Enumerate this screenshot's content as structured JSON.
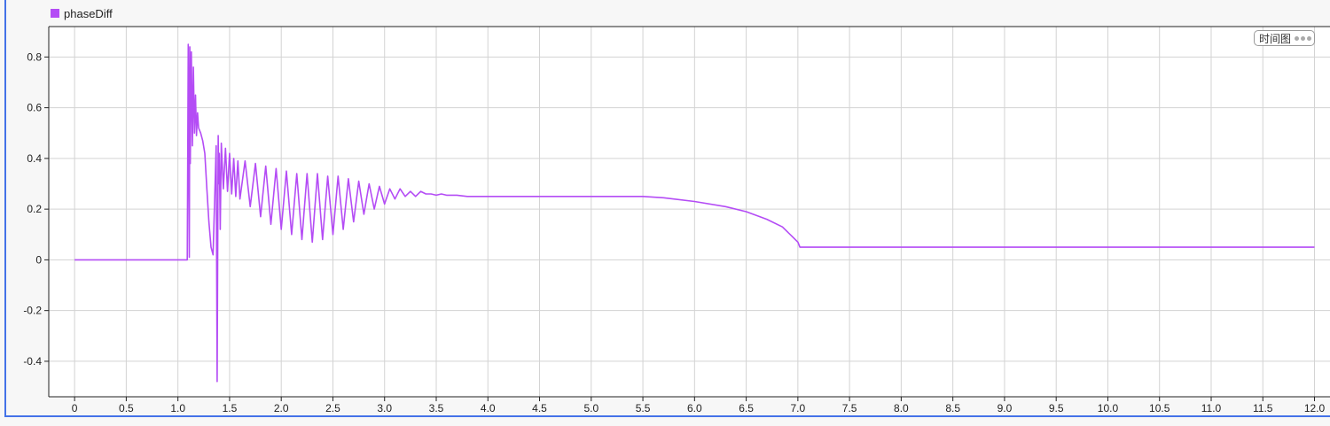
{
  "colors": {
    "series": "#b44cf5",
    "grid": "#d3d3d3",
    "axis": "#222222",
    "frame": "#4472e8"
  },
  "ui": {
    "mode_label": "时间图",
    "more_icon": "more-dots-icon"
  },
  "chart_data": {
    "type": "line",
    "xlim": [
      -0.25,
      12.15
    ],
    "ylim": [
      -0.54,
      0.92
    ],
    "x_ticks": [
      0,
      0.5,
      1.0,
      1.5,
      2.0,
      2.5,
      3.0,
      3.5,
      4.0,
      4.5,
      5.0,
      5.5,
      6.0,
      6.5,
      7.0,
      7.5,
      8.0,
      8.5,
      9.0,
      9.5,
      10.0,
      10.5,
      11.0,
      11.5,
      12.0
    ],
    "x_tick_labels": [
      "0",
      "0.5",
      "1.0",
      "1.5",
      "2.0",
      "2.5",
      "3.0",
      "3.5",
      "4.0",
      "4.5",
      "5.0",
      "5.5",
      "6.0",
      "6.5",
      "7.0",
      "7.5",
      "8.0",
      "8.5",
      "9.0",
      "9.5",
      "10.0",
      "10.5",
      "11.0",
      "11.5",
      "12.0"
    ],
    "y_ticks": [
      0.8,
      0.6,
      0.4,
      0.2,
      0,
      -0.2,
      -0.4
    ],
    "y_tick_labels": [
      "0.8",
      "0.6",
      "0.4",
      "0.2",
      "0",
      "-0.2",
      "-0.4"
    ],
    "grid": true,
    "legend_position": "top-left",
    "series": [
      {
        "name": "phaseDiff",
        "x": [
          0,
          0.5,
          1.09,
          1.1,
          1.11,
          1.115,
          1.12,
          1.13,
          1.14,
          1.15,
          1.16,
          1.17,
          1.18,
          1.19,
          1.2,
          1.22,
          1.24,
          1.26,
          1.28,
          1.3,
          1.32,
          1.34,
          1.36,
          1.37,
          1.38,
          1.39,
          1.395,
          1.4,
          1.41,
          1.42,
          1.44,
          1.46,
          1.48,
          1.5,
          1.52,
          1.54,
          1.56,
          1.58,
          1.6,
          1.65,
          1.7,
          1.75,
          1.8,
          1.85,
          1.9,
          1.95,
          2.0,
          2.05,
          2.1,
          2.15,
          2.2,
          2.25,
          2.3,
          2.35,
          2.4,
          2.45,
          2.5,
          2.55,
          2.6,
          2.65,
          2.7,
          2.75,
          2.8,
          2.85,
          2.9,
          2.95,
          3.0,
          3.05,
          3.1,
          3.15,
          3.2,
          3.25,
          3.3,
          3.35,
          3.4,
          3.45,
          3.5,
          3.55,
          3.6,
          3.7,
          3.8,
          4.0,
          4.5,
          5.0,
          5.5,
          5.7,
          6.0,
          6.3,
          6.5,
          6.7,
          6.85,
          6.95,
          7.0,
          7.01,
          7.02,
          7.05,
          8.0,
          10.0,
          12.0
        ],
        "y": [
          0,
          0,
          0,
          0.85,
          0.01,
          0.84,
          0.38,
          0.82,
          0.45,
          0.76,
          0.5,
          0.65,
          0.49,
          0.58,
          0.52,
          0.5,
          0.47,
          0.42,
          0.28,
          0.15,
          0.05,
          0.02,
          0.3,
          0.45,
          -0.48,
          0.49,
          0.3,
          0.42,
          0.12,
          0.46,
          0.28,
          0.44,
          0.27,
          0.42,
          0.26,
          0.4,
          0.25,
          0.39,
          0.24,
          0.39,
          0.21,
          0.38,
          0.17,
          0.37,
          0.14,
          0.36,
          0.12,
          0.35,
          0.1,
          0.34,
          0.08,
          0.34,
          0.07,
          0.34,
          0.08,
          0.33,
          0.1,
          0.33,
          0.12,
          0.32,
          0.15,
          0.31,
          0.18,
          0.3,
          0.2,
          0.29,
          0.22,
          0.28,
          0.24,
          0.28,
          0.25,
          0.27,
          0.25,
          0.27,
          0.26,
          0.26,
          0.255,
          0.26,
          0.255,
          0.255,
          0.25,
          0.25,
          0.25,
          0.25,
          0.25,
          0.245,
          0.23,
          0.21,
          0.19,
          0.16,
          0.13,
          0.09,
          0.07,
          0.06,
          0.05,
          0.05,
          0.05,
          0.05,
          0.05
        ]
      }
    ]
  }
}
